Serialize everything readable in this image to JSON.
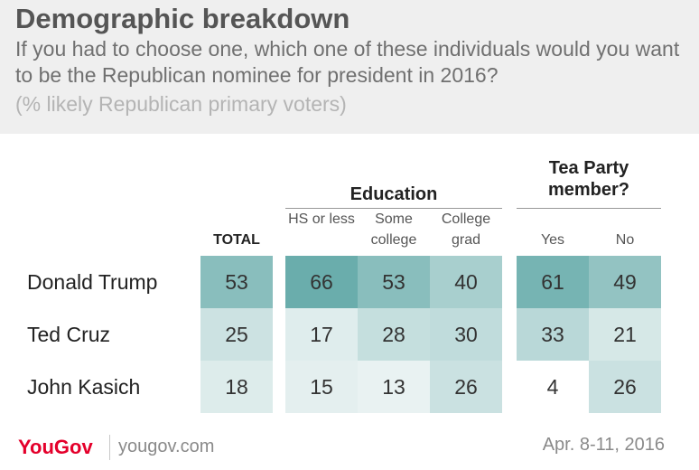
{
  "title": "Demographic breakdown",
  "subtitle": "If you had to choose one, which one of these individuals would you want to be the Republican nominee for president in 2016?",
  "note": "(% likely Republican primary voters)",
  "groups": {
    "education": "Education",
    "tea_party": "Tea Party member?"
  },
  "columns": [
    "TOTAL",
    "HS or less",
    "Some college",
    "College grad",
    "Yes",
    "No"
  ],
  "colors": {
    "header_bg": "#efefef",
    "brand_red": "#e4002b",
    "scale_low": "#f0f6f6",
    "scale_high": "#6aadac"
  },
  "chart_data": {
    "type": "table",
    "rows": [
      {
        "label": "Donald Trump",
        "values": [
          53,
          66,
          53,
          40,
          61,
          49
        ]
      },
      {
        "label": "Ted Cruz",
        "values": [
          25,
          17,
          28,
          30,
          33,
          21
        ]
      },
      {
        "label": "John Kasich",
        "values": [
          18,
          15,
          13,
          26,
          4,
          26
        ]
      }
    ]
  },
  "footer": {
    "brand": "YouGov",
    "url": "yougov.com",
    "date": "Apr. 8-11, 2016"
  }
}
